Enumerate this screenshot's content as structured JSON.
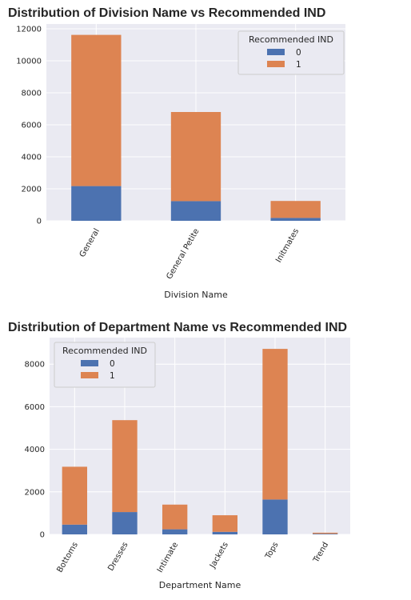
{
  "colors": {
    "series0": "#4c72b0",
    "series1": "#dd8452",
    "plot_bg": "#eaeaf2",
    "grid": "#ffffff"
  },
  "chart_data": [
    {
      "type": "bar",
      "stacked": true,
      "title": "Distribution of Division Name vs Recommended IND",
      "xlabel": "Division Name",
      "ylabel": "",
      "categories": [
        "General",
        "General Petite",
        "Initmates"
      ],
      "series": [
        {
          "name": "0",
          "values": [
            2170,
            1230,
            180
          ]
        },
        {
          "name": "1",
          "values": [
            9450,
            5570,
            1060
          ]
        }
      ],
      "ylim": [
        0,
        12300
      ],
      "yticks": [
        0,
        2000,
        4000,
        6000,
        8000,
        10000,
        12000
      ],
      "legend": {
        "title": "Recommended IND",
        "placement": "top-right"
      },
      "grid": true
    },
    {
      "type": "bar",
      "stacked": true,
      "title": "Distribution of Department Name vs Recommended IND",
      "xlabel": "Department Name",
      "ylabel": "",
      "categories": [
        "Bottoms",
        "Dresses",
        "Intimate",
        "Jackets",
        "Tops",
        "Trend"
      ],
      "series": [
        {
          "name": "0",
          "values": [
            460,
            1050,
            240,
            120,
            1640,
            30
          ]
        },
        {
          "name": "1",
          "values": [
            2720,
            4320,
            1160,
            780,
            7080,
            50
          ]
        }
      ],
      "ylim": [
        0,
        9250
      ],
      "yticks": [
        0,
        2000,
        4000,
        6000,
        8000
      ],
      "legend": {
        "title": "Recommended IND",
        "placement": "top-left"
      },
      "grid": true
    }
  ]
}
